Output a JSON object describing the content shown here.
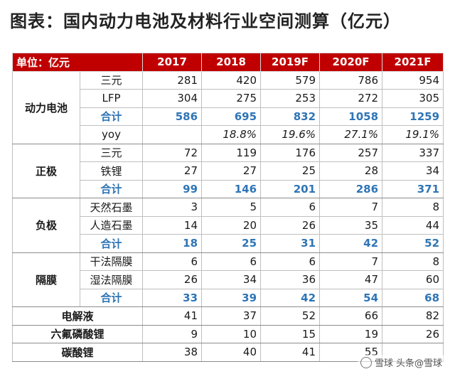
{
  "title": "图表：国内动力电池及材料行业空间测算（亿元）",
  "table": {
    "unit_label": "单位：亿元",
    "years": [
      "2017",
      "2018",
      "2019F",
      "2020F",
      "2021F"
    ],
    "groups": [
      {
        "name": "动力电池",
        "rows": [
          {
            "item": "三元",
            "type": "normal",
            "values": [
              "281",
              "420",
              "579",
              "786",
              "954"
            ]
          },
          {
            "item": "LFP",
            "type": "normal",
            "values": [
              "304",
              "275",
              "253",
              "272",
              "305"
            ]
          },
          {
            "item": "合计",
            "type": "total",
            "values": [
              "586",
              "695",
              "832",
              "1058",
              "1259"
            ]
          },
          {
            "item": "yoy",
            "type": "yoy",
            "values": [
              "",
              "18.8%",
              "19.6%",
              "27.1%",
              "19.1%"
            ]
          }
        ]
      },
      {
        "name": "正极",
        "rows": [
          {
            "item": "三元",
            "type": "normal",
            "values": [
              "72",
              "119",
              "176",
              "257",
              "337"
            ]
          },
          {
            "item": "铁锂",
            "type": "normal",
            "values": [
              "27",
              "27",
              "25",
              "28",
              "34"
            ]
          },
          {
            "item": "合计",
            "type": "total",
            "values": [
              "99",
              "146",
              "201",
              "286",
              "371"
            ]
          }
        ]
      },
      {
        "name": "负极",
        "rows": [
          {
            "item": "天然石墨",
            "type": "normal",
            "values": [
              "3",
              "5",
              "6",
              "7",
              "8"
            ]
          },
          {
            "item": "人造石墨",
            "type": "normal",
            "values": [
              "14",
              "20",
              "26",
              "35",
              "44"
            ]
          },
          {
            "item": "合计",
            "type": "total",
            "values": [
              "18",
              "25",
              "31",
              "42",
              "52"
            ]
          }
        ]
      },
      {
        "name": "隔膜",
        "rows": [
          {
            "item": "干法隔膜",
            "type": "normal",
            "values": [
              "6",
              "6",
              "6",
              "7",
              "8"
            ]
          },
          {
            "item": "湿法隔膜",
            "type": "normal",
            "values": [
              "26",
              "34",
              "36",
              "47",
              "60"
            ]
          },
          {
            "item": "合计",
            "type": "total",
            "values": [
              "33",
              "39",
              "42",
              "54",
              "68"
            ]
          }
        ]
      }
    ],
    "singles": [
      {
        "name": "电解液",
        "values": [
          "41",
          "37",
          "52",
          "66",
          "82"
        ]
      },
      {
        "name": "六氟磷酸锂",
        "values": [
          "9",
          "10",
          "15",
          "19",
          "26"
        ]
      },
      {
        "name": "碳酸锂",
        "values": [
          "38",
          "40",
          "41",
          "55",
          ""
        ]
      }
    ]
  },
  "watermark": {
    "brand": "雪球",
    "text": "头条@雪球"
  }
}
